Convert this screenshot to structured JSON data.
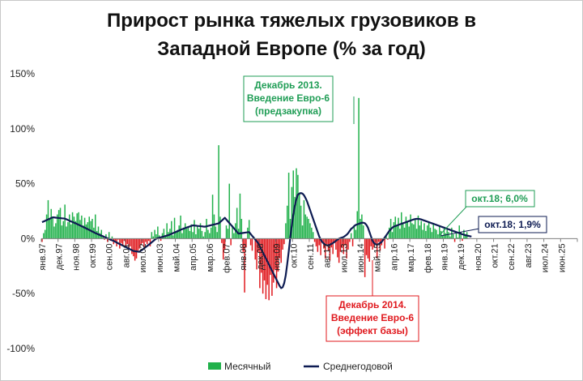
{
  "chart_data": {
    "type": "bar",
    "title": [
      "Прирост рынка тяжелых грузовиков в",
      "Западной Европе (% за год)"
    ],
    "ylim": [
      -100,
      150
    ],
    "y_ticks": [
      "150%",
      "100%",
      "50%",
      "0%",
      "-50%",
      "-100%"
    ],
    "y_tick_values": [
      150,
      100,
      50,
      0,
      -50,
      -100
    ],
    "x_ticks": [
      "янв.97",
      "дек.97",
      "ноя.98",
      "окт.99",
      "сен.00",
      "авг.01",
      "июл.02",
      "июн.03",
      "май.04",
      "апр.05",
      "мар.06",
      "фев.07",
      "янв.08",
      "дек.08",
      "ноя.09",
      "окт.10",
      "сен.11",
      "авг.12",
      "июл.13",
      "июн.14",
      "май.15",
      "апр.16",
      "мар.17",
      "фев.18",
      "янв.19",
      "дек.19",
      "ноя.20",
      "окт.21",
      "сен.22",
      "авг.23",
      "июл.24",
      "июн.25"
    ],
    "x_start": "1997-01",
    "series": [
      {
        "name": "Месячный",
        "kind": "bar",
        "color_positive": "#21b14b",
        "color_negative": "#e0191e",
        "values": [
          -3,
          5,
          8,
          22,
          35,
          18,
          27,
          20,
          11,
          14,
          22,
          26,
          28,
          12,
          16,
          31,
          11,
          15,
          22,
          13,
          24,
          20,
          16,
          23,
          24,
          17,
          21,
          12,
          19,
          13,
          15,
          20,
          16,
          18,
          10,
          22,
          7,
          11,
          5,
          8,
          3,
          -1,
          4,
          -3,
          6,
          -2,
          2,
          -5,
          -3,
          -7,
          -1,
          -9,
          -4,
          -6,
          -2,
          -8,
          -5,
          -10,
          -7,
          -14,
          -16,
          -20,
          -18,
          -11,
          -9,
          -6,
          -4,
          -8,
          -3,
          -5,
          -2,
          -7,
          6,
          2,
          8,
          4,
          11,
          3,
          -2,
          5,
          9,
          2,
          14,
          6,
          9,
          16,
          3,
          19,
          6,
          8,
          12,
          21,
          5,
          10,
          14,
          9,
          11,
          7,
          13,
          6,
          17,
          4,
          11,
          9,
          14,
          7,
          2,
          6,
          18,
          8,
          5,
          10,
          40,
          22,
          11,
          6,
          85,
          20,
          -4,
          -19,
          -10,
          12,
          9,
          50,
          -6,
          12,
          5,
          14,
          28,
          9,
          41,
          18,
          -12,
          -49,
          -8,
          10,
          17,
          -6,
          -11,
          2,
          -19,
          -28,
          -12,
          -45,
          -31,
          -50,
          -38,
          -55,
          -42,
          -56,
          -33,
          -52,
          -40,
          -28,
          -45,
          -30,
          -18,
          -22,
          -10,
          -5,
          14,
          30,
          60,
          18,
          47,
          62,
          38,
          64,
          58,
          42,
          30,
          12,
          35,
          22,
          20,
          18,
          14,
          10,
          6,
          -3,
          -7,
          -12,
          -6,
          -15,
          -3,
          -9,
          -18,
          -5,
          -11,
          -20,
          -8,
          -14,
          -4,
          -10,
          -17,
          -22,
          -12,
          -8,
          -14,
          -6,
          -18,
          -10,
          -3,
          5,
          -7,
          12,
          8,
          25,
          128,
          18,
          22,
          12,
          -35,
          -15,
          -18,
          -21,
          -7,
          -10,
          -8,
          -4,
          -18,
          -3,
          -11,
          -6,
          -2,
          -9,
          3,
          -1,
          10,
          18,
          6,
          15,
          20,
          12,
          19,
          9,
          24,
          14,
          10,
          20,
          16,
          11,
          22,
          14,
          13,
          18,
          9,
          21,
          12,
          16,
          8,
          14,
          7,
          12,
          15,
          10,
          6,
          13,
          9,
          8,
          4,
          11,
          7,
          3,
          9,
          5,
          8,
          6,
          2,
          10,
          4,
          -3,
          5,
          1,
          12,
          6,
          -2,
          8,
          3,
          6
        ]
      },
      {
        "name": "Среднегодовой",
        "kind": "line",
        "color": "#0d1b52",
        "values": [
          15,
          15.6,
          16.2,
          16.9,
          17.5,
          18.1,
          18.8,
          19.4,
          19.3,
          19.1,
          19,
          18.8,
          18.7,
          18.5,
          18.4,
          18.2,
          17.6,
          17,
          16.3,
          15.7,
          15.1,
          14.5,
          13.9,
          13.3,
          12.6,
          12,
          11.3,
          10.7,
          10,
          9.3,
          8.6,
          7.9,
          7.2,
          6.5,
          5.8,
          5.1,
          4.5,
          3.9,
          3.3,
          2.7,
          2.1,
          1.5,
          0.9,
          0.3,
          -0.3,
          -0.9,
          -1.5,
          -2.1,
          -2.8,
          -3.5,
          -4.2,
          -4.9,
          -5.6,
          -6.3,
          -7,
          -7.7,
          -8.4,
          -9.1,
          -9.8,
          -10.5,
          -11.2,
          -11.4,
          -11.6,
          -11.8,
          -12,
          -10.9,
          -9.9,
          -8.8,
          -7.7,
          -6.7,
          -5.6,
          -4.5,
          -3.3,
          -2.2,
          -1,
          0,
          0.4,
          0.8,
          1.2,
          1.6,
          2,
          2.4,
          2.8,
          3.2,
          3.8,
          4.4,
          5,
          5.6,
          6.2,
          6.8,
          7.4,
          8.1,
          8.6,
          9.1,
          9.6,
          10.1,
          10.6,
          11.1,
          11.6,
          12.1,
          11.9,
          11.8,
          11.6,
          11.5,
          11.3,
          11.2,
          11,
          10.9,
          11.2,
          11.6,
          11.9,
          12.2,
          12.6,
          12.9,
          13.2,
          13.6,
          13.9,
          15.2,
          16.4,
          17.7,
          19,
          17.4,
          15.8,
          14.2,
          12.6,
          11,
          9.4,
          7.8,
          6.2,
          4.6,
          4.8,
          5,
          5.2,
          5.4,
          5.6,
          5.8,
          6,
          4.2,
          2.5,
          0.8,
          -0.8,
          -2.5,
          -4.2,
          -7,
          -9.8,
          -12.5,
          -15.3,
          -18.1,
          -20.8,
          -23.6,
          -26.4,
          -29.1,
          -31.9,
          -34.7,
          -37.4,
          -40.2,
          -43,
          -45,
          -44.2,
          -40.5,
          -33.5,
          -23,
          -11.5,
          1,
          12,
          22,
          30,
          36,
          40,
          41,
          41.5,
          41,
          39.5,
          37,
          34,
          30,
          26,
          22,
          18,
          14,
          10,
          6,
          2,
          -1,
          -3,
          -4.5,
          -5.5,
          -6,
          -6,
          -5.5,
          -4.8,
          -4,
          -3,
          -2,
          -1,
          0,
          0.5,
          1,
          1.5,
          2.5,
          3.5,
          5,
          7,
          9,
          10,
          11.5,
          12.5,
          13,
          13.5,
          14,
          14.5,
          14.5,
          14,
          12.5,
          10,
          6,
          2,
          -2,
          -4,
          -5,
          -5.5,
          -5,
          -4,
          -3,
          -1,
          1,
          3,
          5,
          7,
          8.5,
          10,
          11,
          11.5,
          12,
          12.5,
          13,
          13.5,
          14,
          14.5,
          15,
          15.5,
          16,
          16.5,
          17,
          17.5,
          17.8,
          18,
          18,
          17.8,
          17.5,
          17,
          16.5,
          16,
          15.5,
          15,
          14.5,
          14,
          13.5,
          13,
          12.5,
          12,
          11.5,
          11,
          10.5,
          10,
          9.5,
          9,
          8.5,
          8,
          7.5,
          7,
          6.5,
          6,
          5.5,
          5,
          4.5,
          4,
          3.6,
          3.2,
          2.8,
          2.5,
          2.2,
          1.9
        ]
      }
    ],
    "annotations": [
      {
        "lines": [
          "Декабрь 2013.",
          "Введение Евро-6",
          "(предзакупка)"
        ],
        "color": "#1f9d55"
      },
      {
        "lines": [
          "Декабрь 2014.",
          "Введение Евро-6",
          "(эффект базы)"
        ],
        "color": "#e0191e"
      },
      {
        "text": "окт.18; 6,0%",
        "color": "#1f9d55"
      },
      {
        "text": "окт.18; 1,9%",
        "color": "#0d1b52"
      }
    ],
    "legend": {
      "position": "bottom",
      "items": [
        "Месячный",
        "Среднегодовой"
      ]
    },
    "grid": false
  }
}
